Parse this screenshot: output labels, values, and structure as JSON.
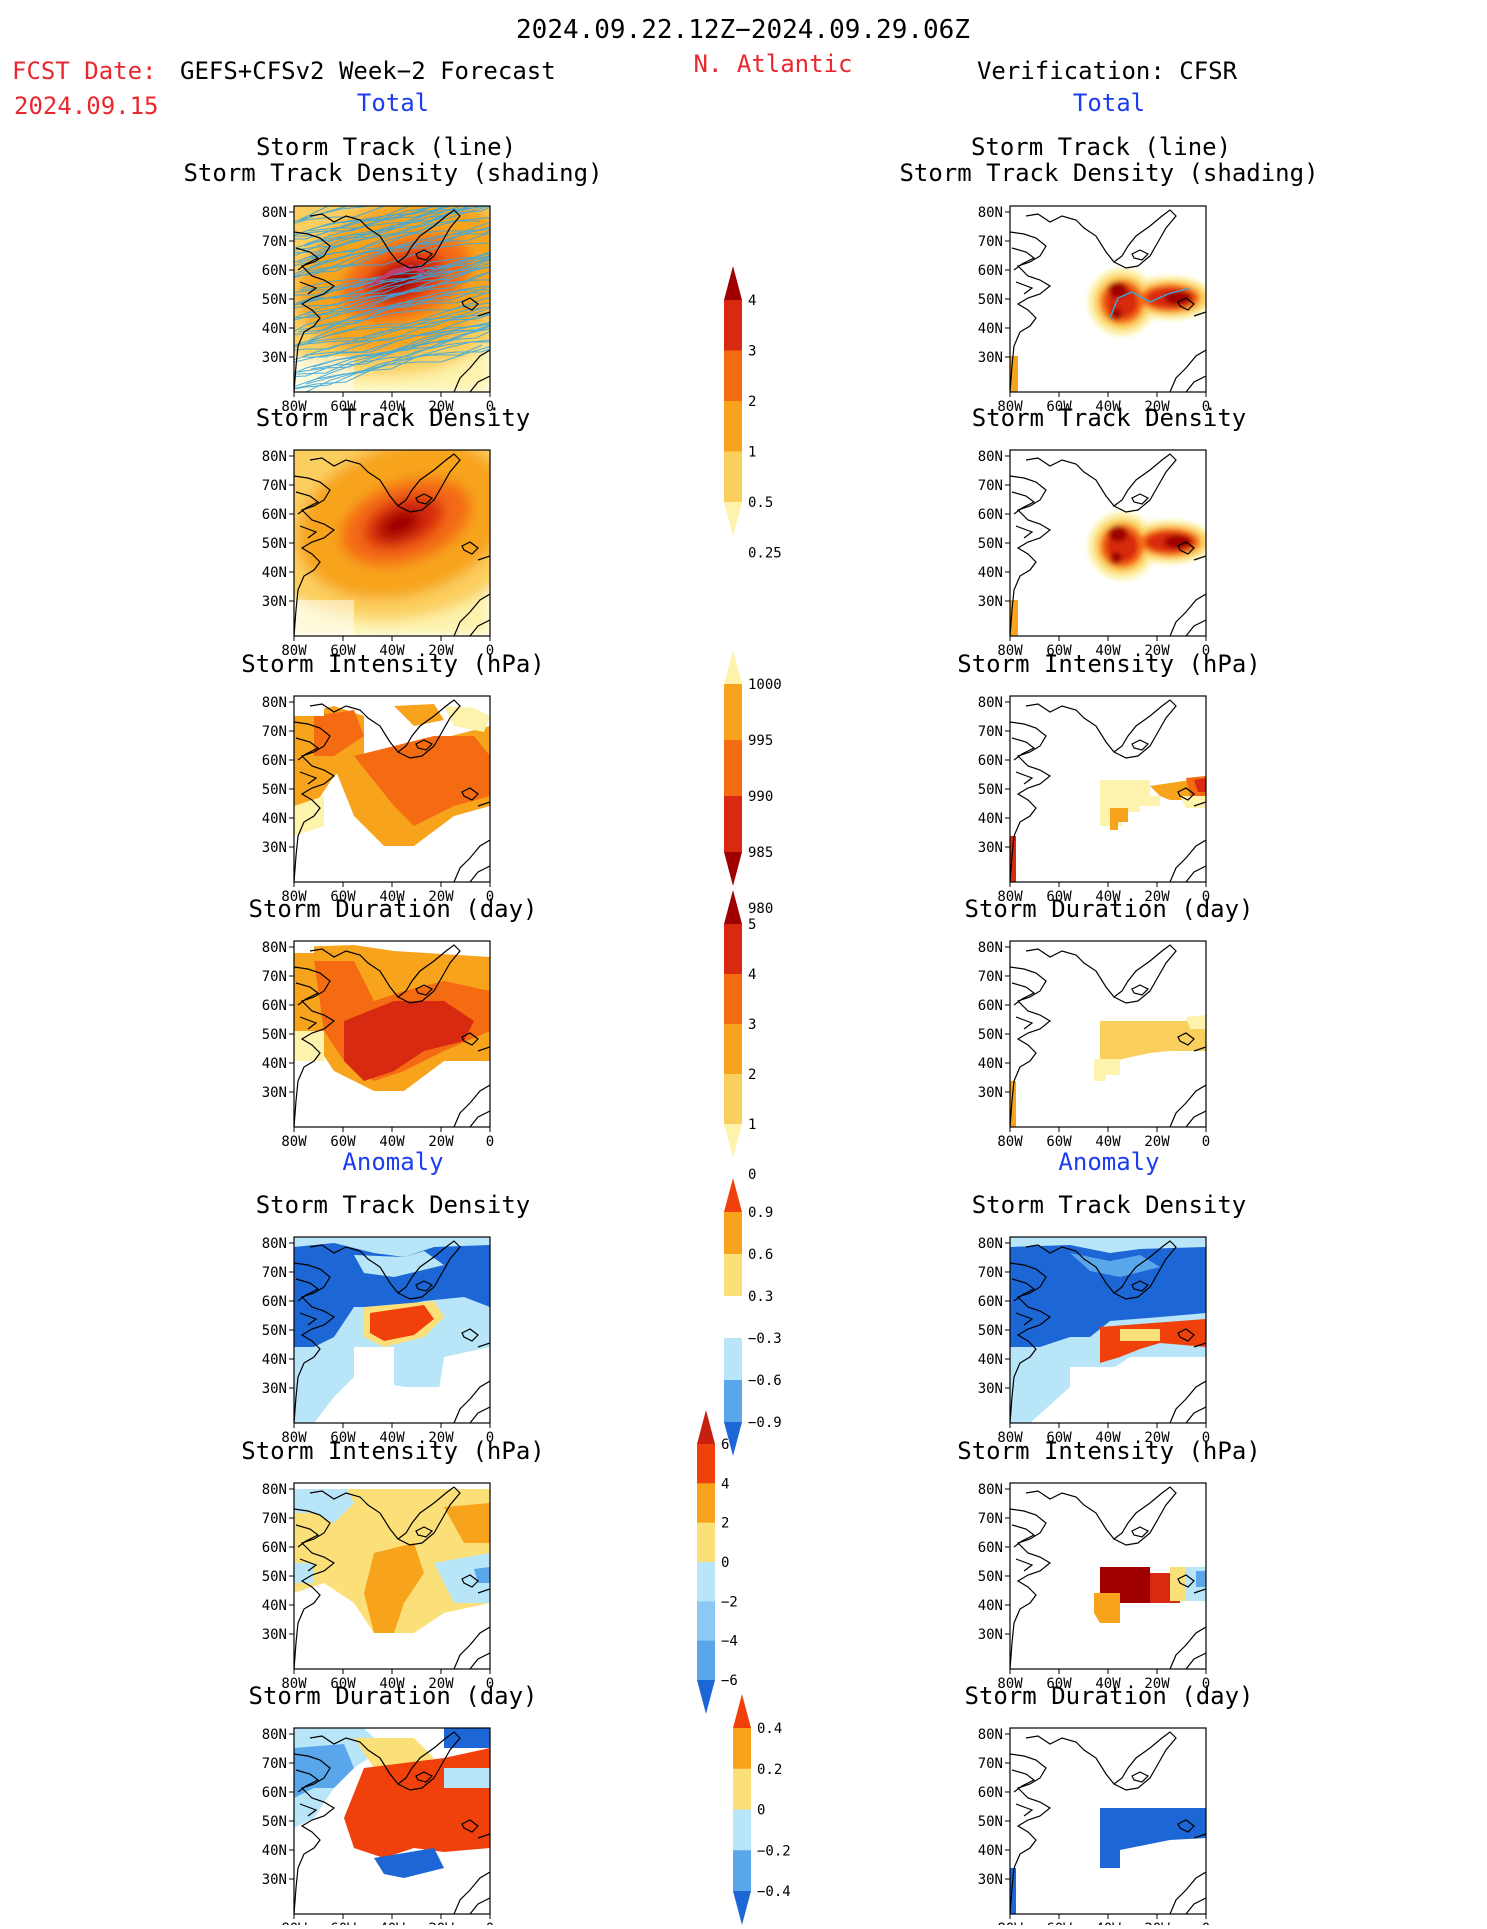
{
  "header": {
    "period": "2024.09.22.12Z−2024.09.29.06Z",
    "fcst_label": "FCST Date:",
    "fcst_model": "GEFS+CFSv2 Week−2 Forecast",
    "fcst_date": "2024.09.15",
    "region": "N. Atlantic",
    "verification": "Verification: CFSR"
  },
  "sections": {
    "total": "Total",
    "anomaly": "Anomaly"
  },
  "panel_titles": {
    "track_line": "Storm Track (line)",
    "track_shading": "Storm Track Density (shading)",
    "density": "Storm Track Density",
    "intensity": "Storm Intensity (hPa)",
    "duration": "Storm Duration (day)"
  },
  "axes": {
    "lon_ticks": [
      "80W",
      "60W",
      "40W",
      "20W",
      "0"
    ],
    "lat_ticks": [
      "80N",
      "70N",
      "60N",
      "50N",
      "40N",
      "30N"
    ]
  },
  "colorbars": {
    "density_total": {
      "labels": [
        "4",
        "3",
        "2",
        "1",
        "0.5",
        "0.25"
      ],
      "colors": [
        "#a00000",
        "#d82a10",
        "#f46b12",
        "#f7a41c",
        "#fbcf5e",
        "#fdf3ad"
      ]
    },
    "intensity_total": {
      "labels": [
        "1000",
        "995",
        "990",
        "985",
        "980"
      ],
      "colors": [
        "#fdf3ad",
        "#f7a41c",
        "#f46b12",
        "#d82a10",
        "#a00000"
      ]
    },
    "duration_total": {
      "labels": [
        "5",
        "4",
        "3",
        "2",
        "1",
        "0"
      ],
      "colors": [
        "#a00000",
        "#d82a10",
        "#f46b12",
        "#f7a41c",
        "#fbcf5e",
        "#fdf3ad"
      ]
    },
    "density_anom": {
      "labels": [
        "0.9",
        "0.6",
        "0.3",
        "−0.3",
        "−0.6",
        "−0.9"
      ],
      "colors": [
        "#f0400c",
        "#f7a41c",
        "#fbe07a",
        "#ffffff",
        "#b8e6f8",
        "#5aa6ea",
        "#1c66d6"
      ]
    },
    "intensity_anom": {
      "labels": [
        "6",
        "4",
        "2",
        "0",
        "−2",
        "−4",
        "−6"
      ],
      "colors": [
        "#c82010",
        "#f0400c",
        "#f7a41c",
        "#fbe07a",
        "#b8e6f8",
        "#8cc8f4",
        "#5aa6ea",
        "#1c66d6"
      ]
    },
    "duration_anom": {
      "labels": [
        "0.4",
        "0.2",
        "0",
        "−0.2",
        "−0.4"
      ],
      "colors": [
        "#f0400c",
        "#f7a41c",
        "#fbe07a",
        "#b8e6f8",
        "#5aa6ea",
        "#1c66d6"
      ]
    }
  },
  "colors": {
    "title_red": "#e8282e",
    "section_blue": "#1c3cf0",
    "track_line": "#3aa8e0"
  }
}
